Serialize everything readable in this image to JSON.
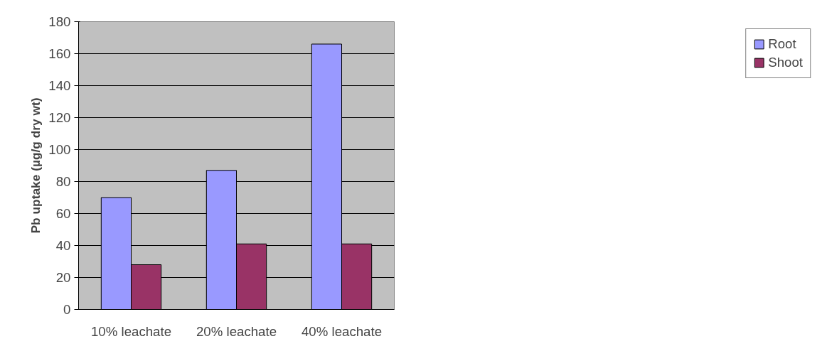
{
  "chart_data": {
    "type": "bar",
    "ylabel": "Pb uptake (µg/g dry wt)",
    "categories": [
      "10% leachate",
      "20% leachate",
      "40% leachate"
    ],
    "series": [
      {
        "name": "Root",
        "color": "#9999ff",
        "values": [
          70,
          87,
          166
        ]
      },
      {
        "name": "Shoot",
        "color": "#993366",
        "values": [
          28,
          41,
          41
        ]
      }
    ],
    "ylim": [
      0,
      180
    ],
    "yticks": [
      0,
      20,
      40,
      60,
      80,
      100,
      120,
      140,
      160,
      180
    ],
    "grid": "y",
    "legend": "right"
  }
}
